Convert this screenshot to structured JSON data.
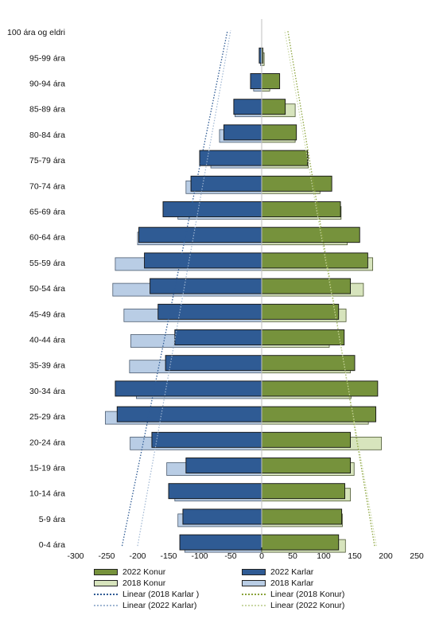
{
  "colors": {
    "female2022": "#76923c",
    "female2018": "#d7e4bd",
    "male2022": "#2f5b94",
    "male2018": "#b9cde5",
    "trendMale2018": "#2f5b94",
    "trendMale2022": "#9fb6d2",
    "trendFemale2018": "#8aa33a",
    "trendFemale2022": "#c9d7a4"
  },
  "legend": {
    "female2022": "2022 Konur",
    "male2022": "2022 Karlar",
    "female2018": "2018 Konur",
    "male2018": "2018 Karlar",
    "trendMale2018": "Linear (2018 Karlar )",
    "trendFemale2018": "Linear (2018 Konur)",
    "trendMale2022": "Linear (2022 Karlar)",
    "trendFemale2022": "Linear (2022 Konur)"
  },
  "chart_data": {
    "type": "bar",
    "orientation": "horizontal",
    "categories": [
      "100 ára og eldri",
      "95-99 ára",
      "90-94 ára",
      "85-89 ára",
      "80-84 ára",
      "75-79 ára",
      "70-74 ára",
      "65-69 ára",
      "60-64 ára",
      "55-59 ára",
      "50-54 ára",
      "45-49 ára",
      "40-44 ára",
      "35-39 ára",
      "30-34 ára",
      "25-29 ára",
      "20-24 ára",
      "15-19 ára",
      "10-14 ára",
      "5-9 ára",
      "0-4 ára"
    ],
    "series": [
      {
        "name": "2022 Karlar",
        "values": [
          0,
          -4,
          -18,
          -45,
          -61,
          -100,
          -114,
          -159,
          -198,
          -189,
          -180,
          -167,
          -140,
          -155,
          -236,
          -233,
          -177,
          -122,
          -150,
          -127,
          -132
        ]
      },
      {
        "name": "2018 Karlar",
        "values": [
          0,
          -2,
          -13,
          -43,
          -68,
          -82,
          -122,
          -135,
          -200,
          -236,
          -240,
          -222,
          -211,
          -213,
          -202,
          -252,
          -212,
          -153,
          -140,
          -135,
          -124
        ]
      },
      {
        "name": "2022 Konur",
        "values": [
          0,
          2,
          29,
          38,
          56,
          74,
          113,
          127,
          158,
          171,
          143,
          124,
          133,
          150,
          187,
          184,
          143,
          143,
          134,
          129,
          124
        ]
      },
      {
        "name": "2018 Konur",
        "values": [
          0,
          4,
          13,
          54,
          54,
          75,
          94,
          128,
          138,
          179,
          164,
          136,
          109,
          143,
          144,
          172,
          193,
          149,
          143,
          130,
          135
        ]
      }
    ],
    "trendlines": [
      {
        "name": "Linear (2018 Karlar )",
        "from": {
          "category": "0-4 ára",
          "value": -225
        },
        "to": {
          "category": "100 ára og eldri",
          "value": -55
        }
      },
      {
        "name": "Linear (2022 Karlar)",
        "from": {
          "category": "0-4 ára",
          "value": -200
        },
        "to": {
          "category": "100 ára og eldri",
          "value": -50
        }
      },
      {
        "name": "Linear (2018 Konur)",
        "from": {
          "category": "0-4 ára",
          "value": 182
        },
        "to": {
          "category": "100 ára og eldri",
          "value": 42
        }
      },
      {
        "name": "Linear (2022 Konur)",
        "from": {
          "category": "0-4 ára",
          "value": 185
        },
        "to": {
          "category": "100 ára og eldri",
          "value": 37
        }
      }
    ],
    "xticks": [
      -300,
      -250,
      -200,
      -150,
      -100,
      -50,
      0,
      50,
      100,
      150,
      200,
      250
    ],
    "xlim": [
      -300,
      250
    ],
    "grid": false,
    "legend_position": "bottom"
  }
}
